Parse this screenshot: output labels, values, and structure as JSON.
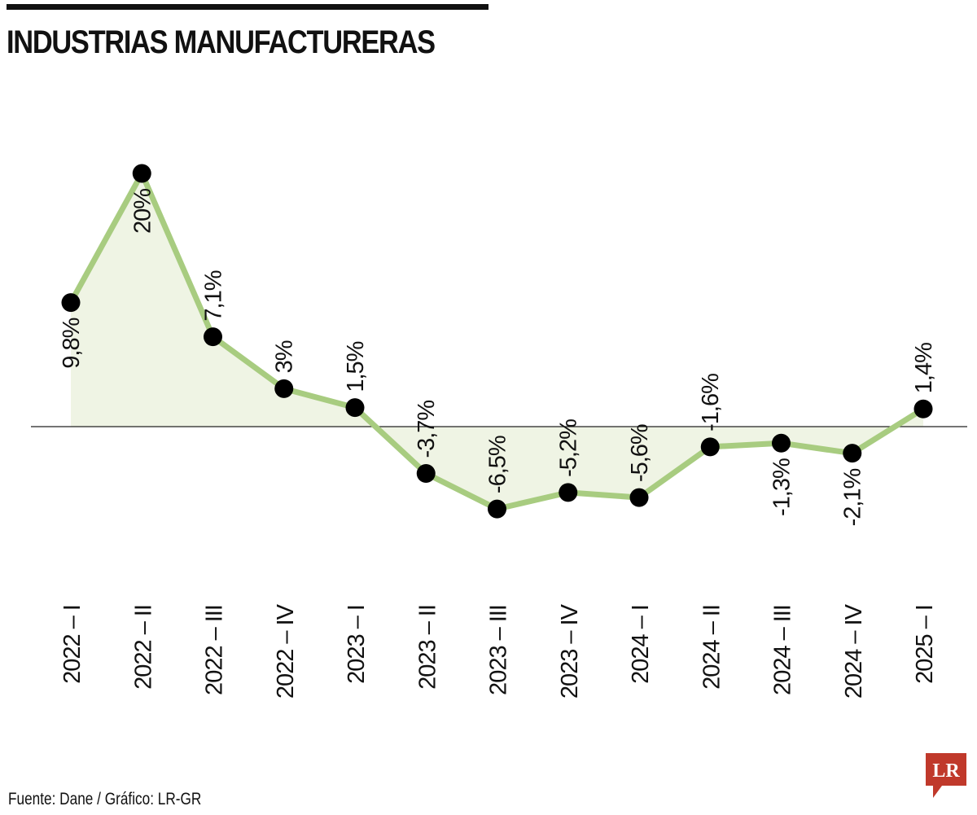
{
  "title": "INDUSTRIAS MANUFACTURERAS",
  "source": "Fuente: Dane / Gráfico: LR-GR",
  "logo_text": "LR",
  "colors": {
    "line": "#a8cc80",
    "fill": "#eff4e4",
    "marker": "#000000",
    "logo": "#c0392b"
  },
  "chart_data": {
    "type": "line",
    "title": "INDUSTRIAS MANUFACTURERAS",
    "xlabel": "",
    "ylabel": "",
    "grid": false,
    "categories": [
      "2022 – I",
      "2022 – II",
      "2022 – III",
      "2022 – IV",
      "2023 – I",
      "2023 – II",
      "2023 – III",
      "2023 – IV",
      "2024 – I",
      "2024 – II",
      "2024 – III",
      "2024 – IV",
      "2025 – I"
    ],
    "values": [
      9.8,
      20,
      7.1,
      3,
      1.5,
      -3.7,
      -6.5,
      -5.2,
      -5.6,
      -1.6,
      -1.3,
      -2.1,
      1.4
    ],
    "labels": [
      "9,8%",
      "20%",
      "7,1%",
      "3%",
      "1,5%",
      "-3,7%",
      "-6,5%",
      "-5,2%",
      "-5,6%",
      "-1,6%",
      "-1,3%",
      "-2,1%",
      "1,4%"
    ],
    "label_position": [
      "below",
      "below",
      "above",
      "above",
      "above",
      "above",
      "above",
      "above",
      "above",
      "above",
      "below",
      "below",
      "above"
    ]
  }
}
